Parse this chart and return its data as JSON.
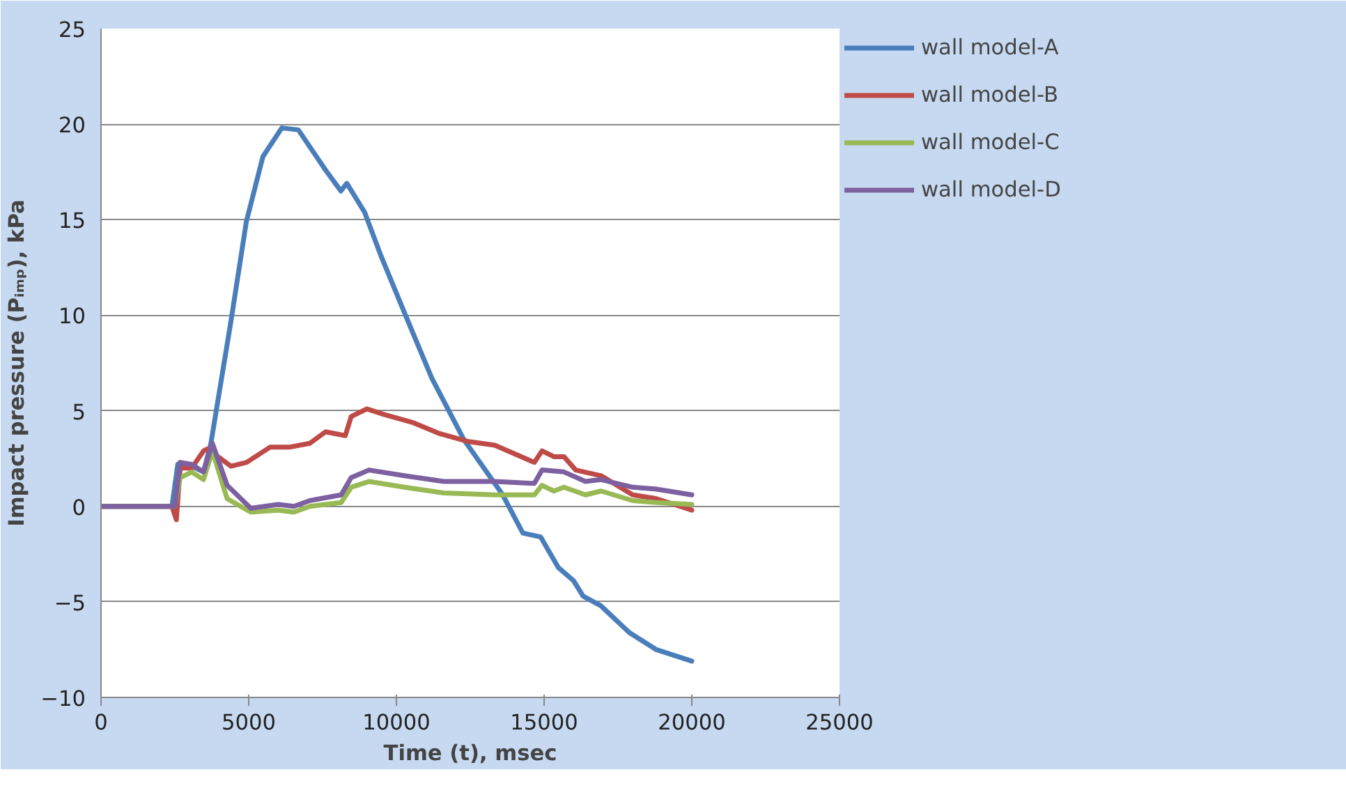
{
  "chart_data": {
    "type": "line",
    "xlabel": "Time (t), msec",
    "ylabel": "Impact pressure (Pᵢₘₚ), kPa",
    "xlim": [
      0,
      25000
    ],
    "ylim": [
      -10,
      25
    ],
    "xticks": [
      0,
      5000,
      10000,
      15000,
      20000,
      25000
    ],
    "yticks": [
      -10,
      -5,
      0,
      5,
      10,
      15,
      20,
      25
    ],
    "grid": "y",
    "legend": "right",
    "marker": "none",
    "line_style": "solid",
    "series": [
      {
        "name": "wall model-A",
        "color": "#4a7ebb",
        "x": [
          0,
          2400,
          2600,
          3070,
          3470,
          3720,
          4400,
          4920,
          5480,
          6120,
          6680,
          7600,
          8120,
          8320,
          8920,
          9480,
          10280,
          11200,
          12280,
          13600,
          14280,
          14880,
          15480,
          16000,
          16320,
          16920,
          17880,
          18800,
          20000
        ],
        "values": [
          0,
          0,
          2.2,
          2.1,
          1.8,
          3.3,
          9.7,
          14.9,
          18.3,
          19.8,
          19.7,
          17.6,
          16.5,
          16.9,
          15.4,
          13.1,
          10.1,
          6.7,
          3.5,
          0.6,
          -1.4,
          -1.6,
          -3.2,
          -3.9,
          -4.7,
          -5.2,
          -6.6,
          -7.5,
          -8.1
        ]
      },
      {
        "name": "wall model-B",
        "color": "#be4b48",
        "x": [
          0,
          2400,
          2550,
          2680,
          3070,
          3470,
          3600,
          4400,
          4930,
          5730,
          6400,
          7070,
          7600,
          8270,
          8470,
          9000,
          9600,
          10530,
          11470,
          12400,
          13330,
          14670,
          14930,
          15330,
          15670,
          16070,
          16930,
          18000,
          18800,
          20000
        ],
        "values": [
          0,
          0,
          -0.7,
          2.0,
          2.0,
          2.9,
          3.0,
          2.1,
          2.3,
          3.1,
          3.1,
          3.3,
          3.9,
          3.7,
          4.7,
          5.1,
          4.8,
          4.4,
          3.8,
          3.4,
          3.2,
          2.3,
          2.9,
          2.6,
          2.6,
          1.9,
          1.6,
          0.6,
          0.4,
          -0.2
        ]
      },
      {
        "name": "wall model-C",
        "color": "#98b954",
        "x": [
          0,
          2500,
          2680,
          3070,
          3470,
          3770,
          4270,
          5070,
          6000,
          6530,
          7070,
          8130,
          8470,
          9070,
          10270,
          11600,
          13330,
          14670,
          14930,
          15330,
          15670,
          16400,
          16930,
          18000,
          18800,
          20000
        ],
        "values": [
          0,
          0,
          1.5,
          1.8,
          1.4,
          2.9,
          0.4,
          -0.3,
          -0.2,
          -0.3,
          0,
          0.2,
          1.0,
          1.3,
          1.0,
          0.7,
          0.6,
          0.6,
          1.1,
          0.8,
          1.0,
          0.6,
          0.8,
          0.3,
          0.2,
          0.1
        ]
      },
      {
        "name": "wall model-D",
        "color": "#7d60a0",
        "x": [
          0,
          2500,
          2680,
          3070,
          3470,
          3770,
          4270,
          5070,
          6000,
          6530,
          7070,
          8130,
          8470,
          9070,
          10270,
          11600,
          13330,
          14670,
          14930,
          15670,
          16400,
          16930,
          18000,
          18800,
          20000
        ],
        "values": [
          0,
          0,
          2.3,
          2.2,
          1.8,
          3.3,
          1.1,
          -0.1,
          0.1,
          0,
          0.3,
          0.6,
          1.5,
          1.9,
          1.6,
          1.3,
          1.3,
          1.2,
          1.9,
          1.8,
          1.3,
          1.4,
          1.0,
          0.9,
          0.6
        ]
      }
    ]
  }
}
